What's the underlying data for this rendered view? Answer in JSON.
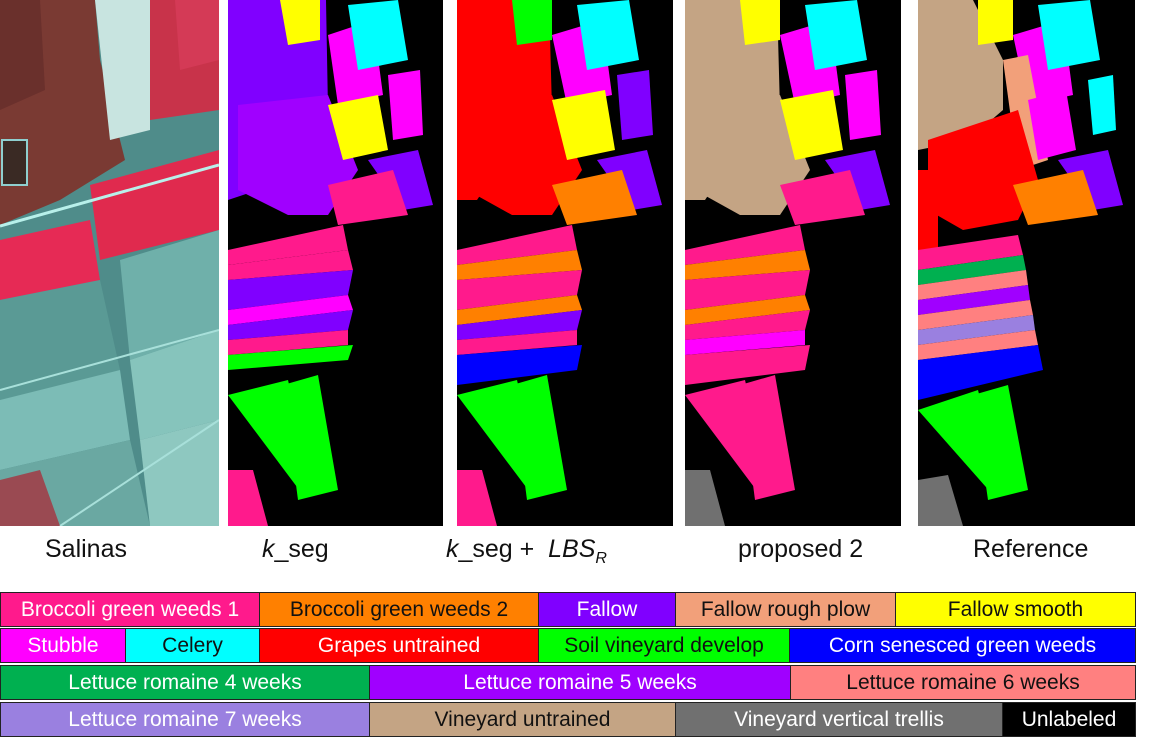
{
  "panels": [
    {
      "id": "salinas",
      "caption_text": "Salinas"
    },
    {
      "id": "kseg",
      "caption_italic": "k",
      "caption_rest": "_seg"
    },
    {
      "id": "kseg_lbs",
      "caption_italic": "k",
      "caption_rest": "_seg +  ",
      "caption_italic2": "LBS",
      "caption_sub": "R"
    },
    {
      "id": "proposed2",
      "caption_text": "proposed 2"
    },
    {
      "id": "reference",
      "caption_text": "Reference"
    }
  ],
  "legend": {
    "rows": [
      [
        {
          "label": "Broccoli green weeds 1",
          "color": "#ff1a8c",
          "text_color": "#ffffff"
        },
        {
          "label": "Broccoli green weeds 2",
          "color": "#ff8000",
          "text_color": "#111111"
        },
        {
          "label": "Fallow",
          "color": "#8000ff",
          "text_color": "#ffffff"
        },
        {
          "label": "Fallow rough plow",
          "color": "#f2a07a",
          "text_color": "#111111"
        },
        {
          "label": "Fallow smooth",
          "color": "#ffff00",
          "text_color": "#111111"
        }
      ],
      [
        {
          "label": "Stubble",
          "color": "#ff00ff",
          "text_color": "#ffffff"
        },
        {
          "label": "Celery",
          "color": "#00ffff",
          "text_color": "#111111"
        },
        {
          "label": "Grapes untrained",
          "color": "#ff0000",
          "text_color": "#ffffff"
        },
        {
          "label": "Soil vineyard develop",
          "color": "#00ff00",
          "text_color": "#111111"
        },
        {
          "label": "Corn senesced green weeds",
          "color": "#0000ff",
          "text_color": "#ffffff"
        }
      ],
      [
        {
          "label": "Lettuce romaine 4 weeks",
          "color": "#00b050",
          "text_color": "#ffffff"
        },
        {
          "label": "Lettuce romaine 5 weeks",
          "color": "#a000ff",
          "text_color": "#ffffff"
        },
        {
          "label": "Lettuce romaine 6 weeks",
          "color": "#ff8080",
          "text_color": "#111111"
        }
      ],
      [
        {
          "label": "Lettuce romaine 7 weeks",
          "color": "#9a80e0",
          "text_color": "#ffffff"
        },
        {
          "label": "Vineyard untrained",
          "color": "#c4a484",
          "text_color": "#111111"
        },
        {
          "label": "Vineyard vertical trellis",
          "color": "#707070",
          "text_color": "#ffffff"
        },
        {
          "label": "Unlabeled",
          "color": "#000000",
          "text_color": "#ffffff"
        }
      ]
    ]
  }
}
